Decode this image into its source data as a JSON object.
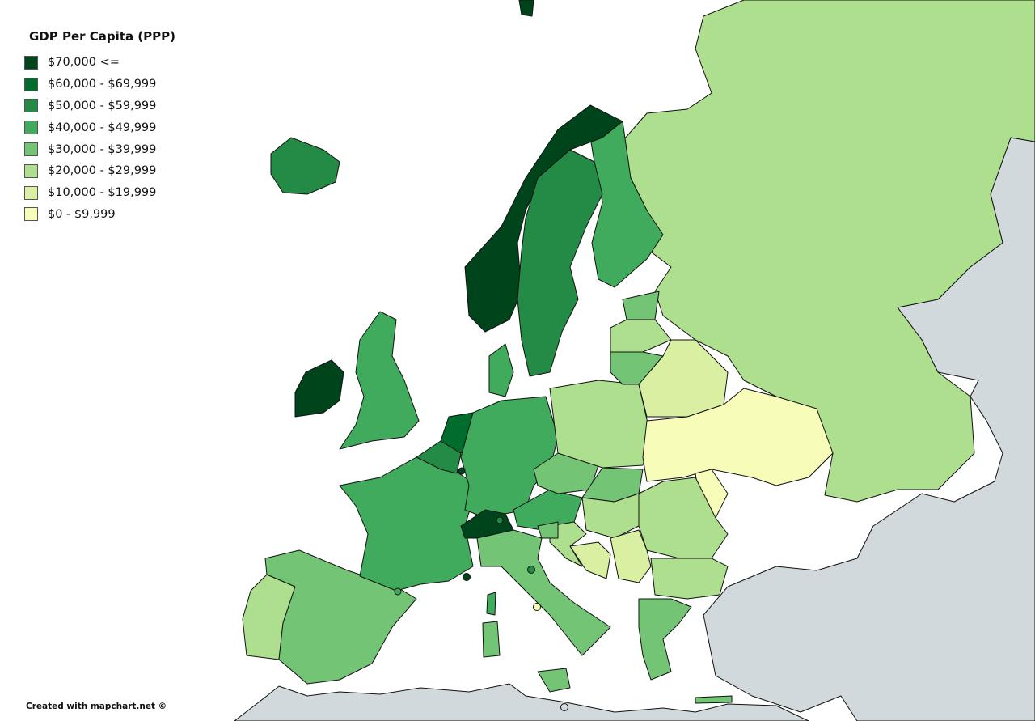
{
  "legend": {
    "title": "GDP Per Capita (PPP)",
    "items": [
      {
        "label": "$70,000 <=",
        "color": "#00441b"
      },
      {
        "label": "$60,000 - $69,999",
        "color": "#006d2c"
      },
      {
        "label": "$50,000 - $59,999",
        "color": "#238b45"
      },
      {
        "label": "$40,000 - $49,999",
        "color": "#41ab5d"
      },
      {
        "label": "$30,000 - $39,999",
        "color": "#74c476"
      },
      {
        "label": "$20,000 - $29,999",
        "color": "#addf8e"
      },
      {
        "label": "$10,000 - $19,999",
        "color": "#d9f0a3"
      },
      {
        "label": "$0 - $9,999",
        "color": "#f7fcb9"
      }
    ]
  },
  "credit": "Created with mapchart.net ©",
  "colors": {
    "no_data": "#d2d9dc",
    "sea": "#ffffff",
    "border": "#111111"
  }
}
